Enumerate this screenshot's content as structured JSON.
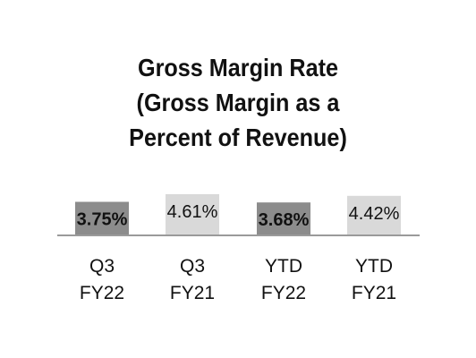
{
  "chart_data": {
    "type": "bar",
    "title_lines": [
      "Gross Margin Rate",
      "(Gross Margin as a",
      "Percent of Revenue)"
    ],
    "categories": [
      [
        "Q3",
        "FY22"
      ],
      [
        "Q3",
        "FY21"
      ],
      [
        "YTD",
        "FY22"
      ],
      [
        "YTD",
        "FY21"
      ]
    ],
    "values": [
      3.75,
      4.61,
      3.68,
      4.42
    ],
    "value_labels": [
      "3.75%",
      "4.61%",
      "3.68%",
      "4.42%"
    ],
    "bar_colors": [
      "#8c8c8c",
      "#d9d9d9",
      "#8c8c8c",
      "#d9d9d9"
    ],
    "label_bold": [
      true,
      false,
      true,
      false
    ],
    "ylim": [
      0,
      10
    ],
    "grid": false,
    "legend": "none",
    "axis_color": "#9a9a9a"
  }
}
